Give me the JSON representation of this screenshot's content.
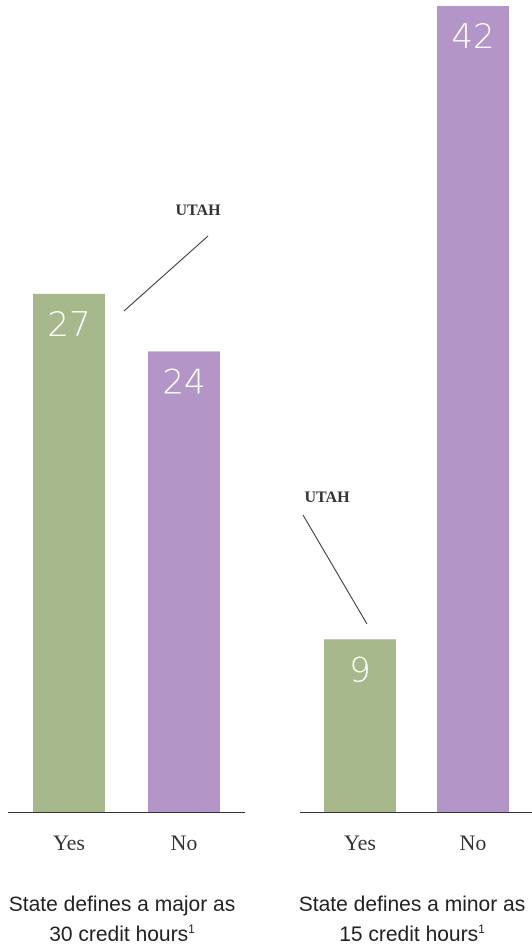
{
  "chart_data": [
    {
      "type": "bar",
      "categories": [
        "Yes",
        "No"
      ],
      "values": [
        27,
        24
      ],
      "colors": [
        "#a7b98c",
        "#b395c8"
      ],
      "ylim": [
        0,
        42
      ],
      "title": "State defines a major as 30 credit hours",
      "title_footnote": "1",
      "annotation": "UTAH"
    },
    {
      "type": "bar",
      "categories": [
        "Yes",
        "No"
      ],
      "values": [
        9,
        42
      ],
      "colors": [
        "#a7b98c",
        "#b395c8"
      ],
      "ylim": [
        0,
        42
      ],
      "title": "State defines a minor as 15 credit hours",
      "title_footnote": "1",
      "annotation": "UTAH"
    }
  ]
}
